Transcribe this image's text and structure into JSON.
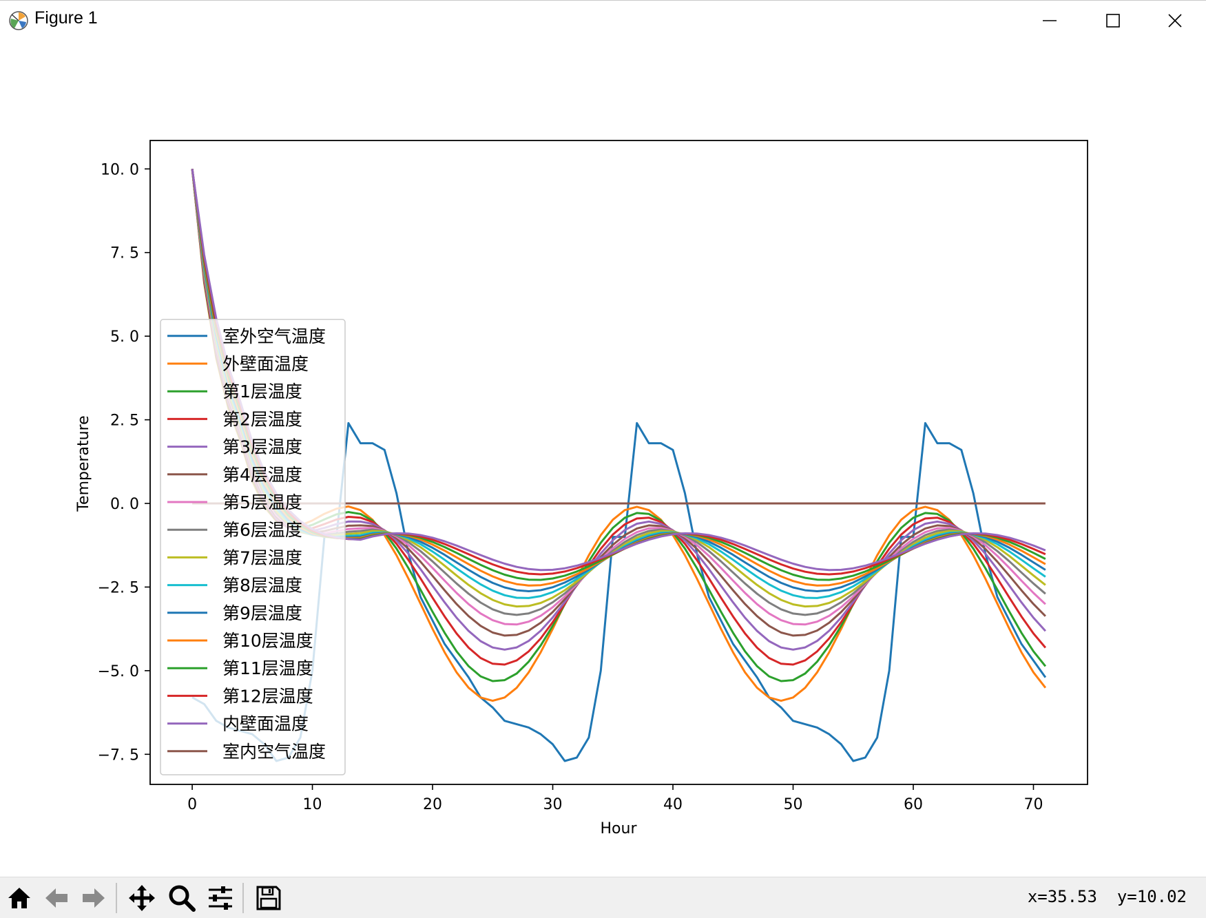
{
  "window": {
    "title": "Figure 1",
    "icons": {
      "app": "matplotlib-icon",
      "minimize": "minimize-icon",
      "maximize": "maximize-icon",
      "close": "close-icon"
    }
  },
  "toolbar": {
    "buttons": [
      {
        "name": "home-button",
        "icon": "home-icon"
      },
      {
        "name": "back-button",
        "icon": "arrow-left-icon"
      },
      {
        "name": "forward-button",
        "icon": "arrow-right-icon"
      },
      {
        "name": "pan-button",
        "icon": "move-icon"
      },
      {
        "name": "zoom-button",
        "icon": "magnifier-icon"
      },
      {
        "name": "configure-subplots-button",
        "icon": "sliders-icon"
      },
      {
        "name": "save-button",
        "icon": "floppy-disk-icon"
      }
    ],
    "coordinates": "x=35.53  y=10.02"
  },
  "chart_data": {
    "type": "line",
    "xlabel": "Hour",
    "ylabel": "Temperature",
    "xlim": [
      -3.5,
      74.5
    ],
    "ylim": [
      -8.4,
      10.85
    ],
    "xticks": [
      0,
      10,
      20,
      30,
      40,
      50,
      60,
      70
    ],
    "xtick_labels": [
      "0",
      "10",
      "20",
      "30",
      "40",
      "50",
      "60",
      "70"
    ],
    "yticks": [
      10.0,
      7.5,
      5.0,
      2.5,
      0.0,
      -2.5,
      -5.0,
      -7.5
    ],
    "ytick_labels": [
      "10. 0",
      "7. 5",
      "5. 0",
      "2. 5",
      "0. 0",
      "−2. 5",
      "−5. 0",
      "−7. 5"
    ],
    "grid": false,
    "legend_position": "lower-left",
    "x": [
      0,
      1,
      2,
      3,
      4,
      5,
      6,
      7,
      8,
      9,
      10,
      11,
      12,
      13,
      14,
      15,
      16,
      17,
      18,
      19,
      20,
      21,
      22,
      23,
      24,
      25,
      26,
      27,
      28,
      29,
      30,
      31,
      32,
      33,
      34,
      35,
      36,
      37,
      38,
      39,
      40,
      41,
      42,
      43,
      44,
      45,
      46,
      47,
      48,
      49,
      50,
      51,
      52,
      53,
      54,
      55,
      56,
      57,
      58,
      59,
      60,
      61,
      62,
      63,
      64,
      65,
      66,
      67,
      68,
      69,
      70,
      71
    ],
    "outdoor_air": [
      -5.8,
      -6.0,
      -6.5,
      -6.7,
      -6.8,
      -6.9,
      -7.2,
      -7.7,
      -7.6,
      -7.0,
      -5.0,
      -1.0,
      -1.0,
      2.4,
      1.8,
      1.8,
      1.6,
      0.3,
      -1.5,
      -2.8,
      -3.5,
      -4.2,
      -4.7,
      -5.2,
      -5.8,
      -6.1,
      -6.5,
      -6.6,
      -6.7,
      -6.9,
      -7.2,
      -7.7,
      -7.6,
      -7.0,
      -5.0,
      -1.0,
      -1.0,
      2.4,
      1.8,
      1.8,
      1.6,
      0.3,
      -1.5,
      -2.8,
      -3.5,
      -4.2,
      -4.7,
      -5.2,
      -5.8,
      -6.1,
      -6.5,
      -6.6,
      -6.7,
      -6.9,
      -7.2,
      -7.7,
      -7.6,
      -7.0,
      -5.0,
      -1.0,
      -1.0,
      2.4,
      1.8,
      1.8,
      1.6,
      0.3,
      -1.5,
      -2.8,
      -3.5,
      -4.2,
      -4.7,
      -5.2
    ],
    "series": [
      {
        "name": "室外空气温度",
        "color": "#1f77b4",
        "kind": "outdoor_air"
      },
      {
        "name": "外壁面温度",
        "color": "#ff7f0e",
        "kind": "layer",
        "phase": 0.0,
        "amp": 1.0,
        "shift": 0.0
      },
      {
        "name": "第1层温度",
        "color": "#2ca02c",
        "kind": "layer",
        "phase": 0.55,
        "amp": 0.87,
        "shift": 0.03
      },
      {
        "name": "第2层温度",
        "color": "#d62728",
        "kind": "layer",
        "phase": 1.1,
        "amp": 0.76,
        "shift": 0.06
      },
      {
        "name": "第3层温度",
        "color": "#9467bd",
        "kind": "layer",
        "phase": 1.65,
        "amp": 0.66,
        "shift": 0.09
      },
      {
        "name": "第4层温度",
        "color": "#8c564b",
        "kind": "layer",
        "phase": 2.2,
        "amp": 0.57,
        "shift": 0.12
      },
      {
        "name": "第5层温度",
        "color": "#e377c2",
        "kind": "layer",
        "phase": 2.75,
        "amp": 0.5,
        "shift": 0.15
      },
      {
        "name": "第6层温度",
        "color": "#7f7f7f",
        "kind": "layer",
        "phase": 3.3,
        "amp": 0.44,
        "shift": 0.18
      },
      {
        "name": "第7层温度",
        "color": "#bcbd22",
        "kind": "layer",
        "phase": 3.85,
        "amp": 0.39,
        "shift": 0.21
      },
      {
        "name": "第8层温度",
        "color": "#17becf",
        "kind": "layer",
        "phase": 4.4,
        "amp": 0.34,
        "shift": 0.24
      },
      {
        "name": "第9层温度",
        "color": "#1f77b4",
        "kind": "layer",
        "phase": 4.95,
        "amp": 0.3,
        "shift": 0.27
      },
      {
        "name": "第10层温度",
        "color": "#ff7f0e",
        "kind": "layer",
        "phase": 5.5,
        "amp": 0.27,
        "shift": 0.3
      },
      {
        "name": "第11层温度",
        "color": "#2ca02c",
        "kind": "layer",
        "phase": 6.05,
        "amp": 0.24,
        "shift": 0.33
      },
      {
        "name": "第12层温度",
        "color": "#d62728",
        "kind": "layer",
        "phase": 6.6,
        "amp": 0.21,
        "shift": 0.36
      },
      {
        "name": "内壁面温度",
        "color": "#9467bd",
        "kind": "layer",
        "phase": 7.15,
        "amp": 0.19,
        "shift": 0.39
      },
      {
        "name": "室内空气温度",
        "color": "#8c564b",
        "kind": "constant",
        "value": 0.0
      }
    ]
  }
}
